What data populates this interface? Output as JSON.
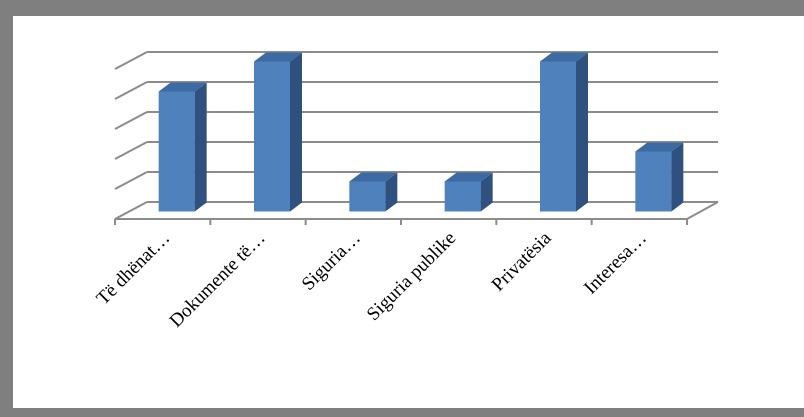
{
  "chart_data": {
    "type": "bar",
    "style": "3d-column",
    "title": "",
    "xlabel": "",
    "ylabel": "",
    "categories": [
      "Të dhënat…",
      "Dokumente të…",
      "Siguria…",
      "Siguria publike",
      "Privatësia",
      "Interesa…"
    ],
    "values": [
      4,
      5,
      1,
      1,
      5,
      2
    ],
    "ylim": [
      0,
      5
    ],
    "y_tick_labels_shown": false,
    "grid": true,
    "legend": "none",
    "colors": {
      "bar_front": "#4f81bd",
      "bar_side": "#2e5180",
      "bar_top": "#3c6aa3",
      "gridline": "#8c8c8c",
      "frame": "#7f7f7f"
    }
  }
}
